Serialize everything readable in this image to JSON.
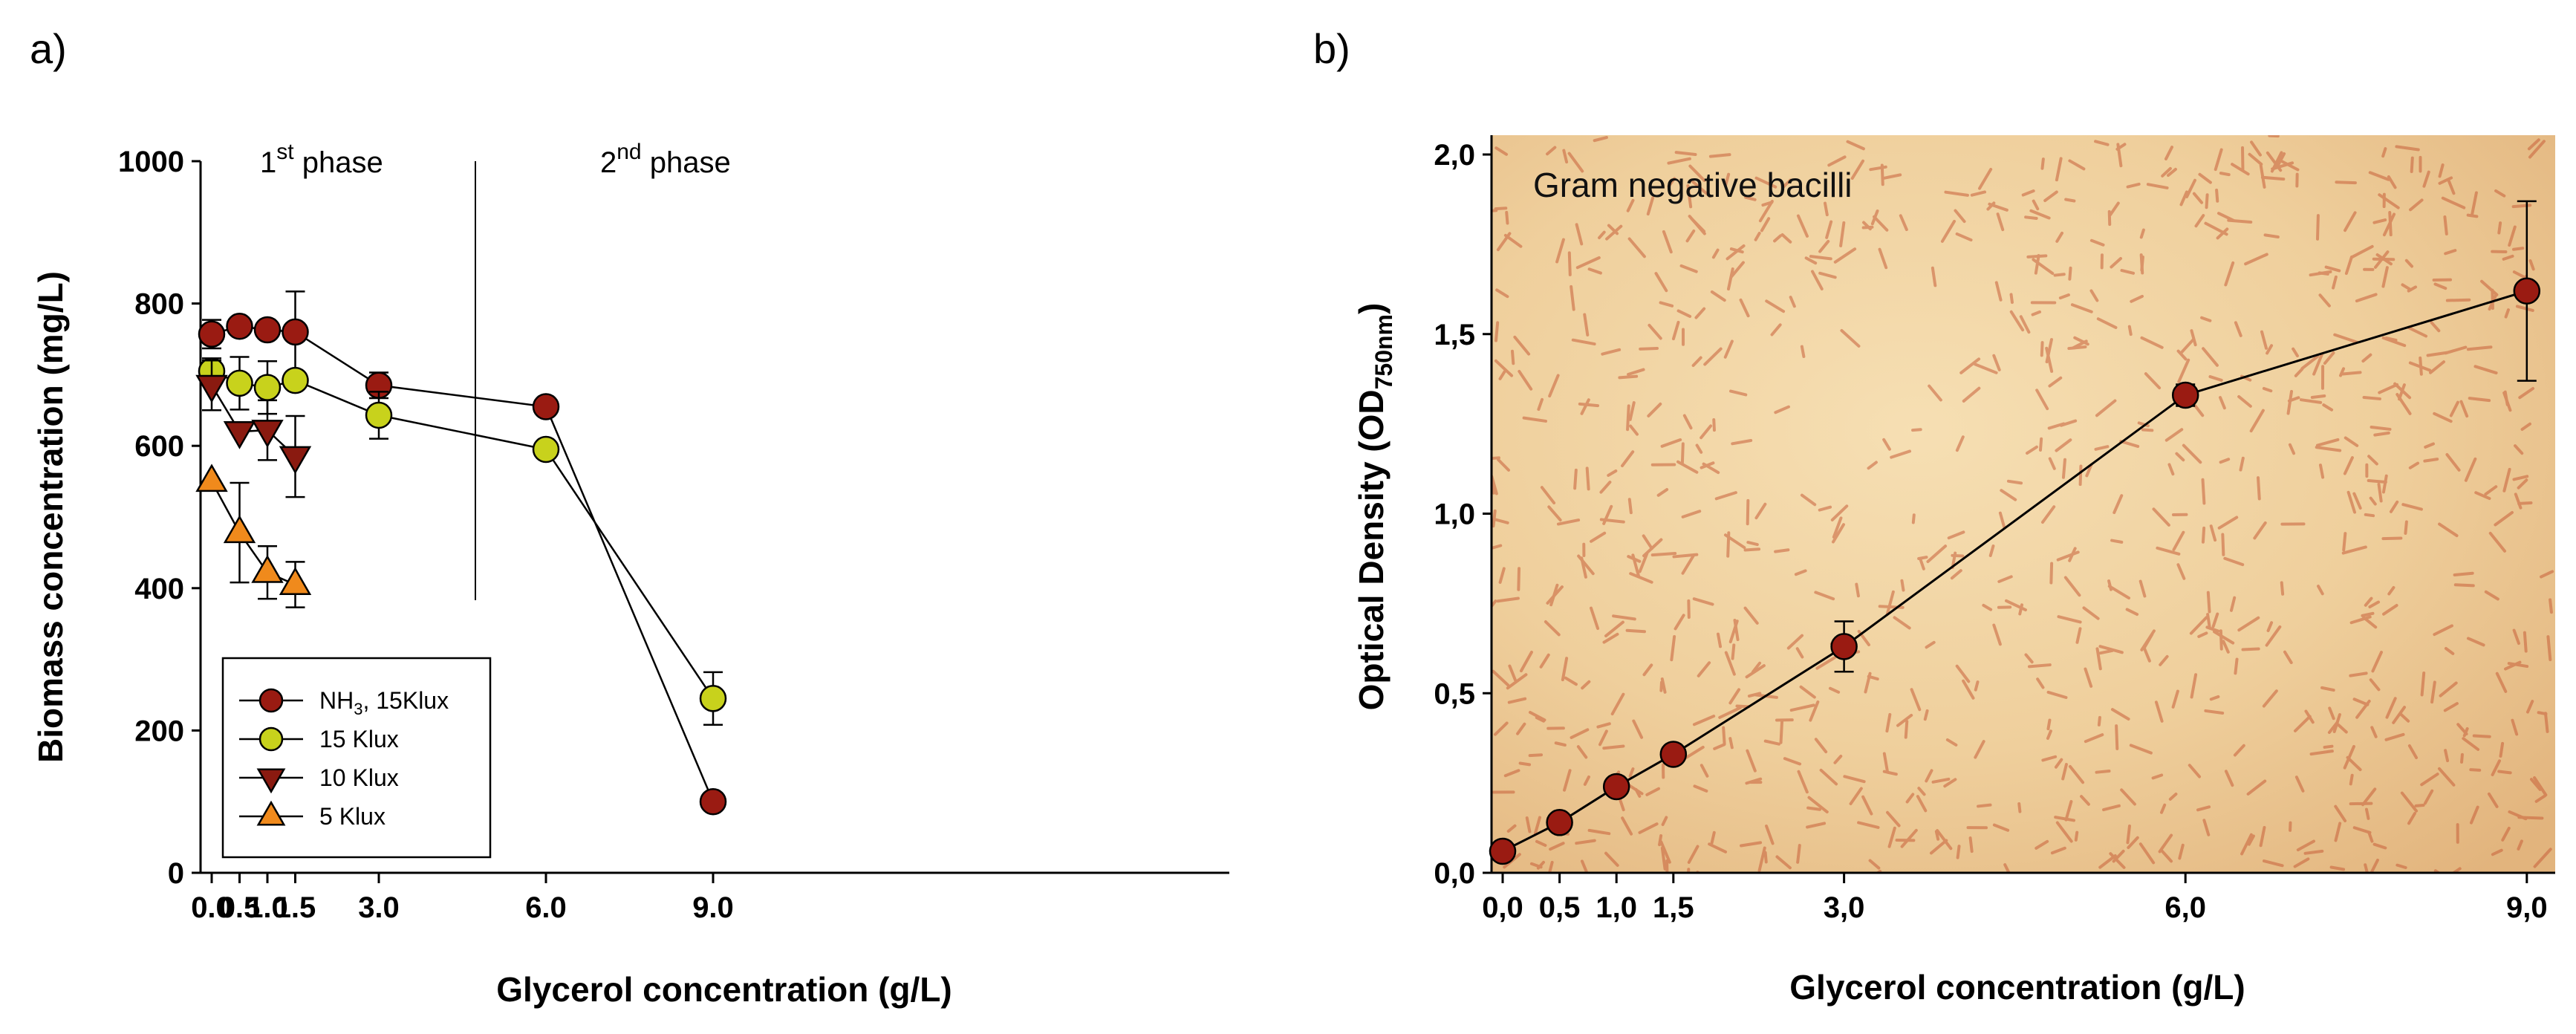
{
  "chart_data": [
    {
      "panel": "a)",
      "type": "line",
      "xlabel": "Glycerol concentration (g/L)",
      "ylabel": "Biomass concentration (mg/L)",
      "ylim": [
        0,
        1000
      ],
      "yticks": [
        "0",
        "200",
        "400",
        "600",
        "800",
        "1000"
      ],
      "xticks": [
        {
          "value": 0.0,
          "label": "0.0"
        },
        {
          "value": 0.5,
          "label": "0.5"
        },
        {
          "value": 1.0,
          "label": "1.0"
        },
        {
          "value": 1.5,
          "label": "1.5"
        },
        {
          "value": 3.0,
          "label": "3.0"
        },
        {
          "value": 6.0,
          "label": "6.0"
        },
        {
          "value": 9.0,
          "label": "9.0"
        }
      ],
      "phases": {
        "first": {
          "base": "1",
          "sup": "st",
          "rest": " phase"
        },
        "second": {
          "base": "2",
          "sup": "nd",
          "rest": " phase"
        }
      },
      "legend_position": "bottom-left",
      "series": [
        {
          "name": "NH3, 15Klux",
          "name_main": "NH",
          "name_sub": "3",
          "name_rest": ", 15Klux",
          "marker": "circle",
          "color": "#9a1b12",
          "points": [
            {
              "x": 0.0,
              "y": 757,
              "err": 20
            },
            {
              "x": 0.5,
              "y": 768,
              "err": 0
            },
            {
              "x": 1.0,
              "y": 763,
              "err": 0
            },
            {
              "x": 1.5,
              "y": 760,
              "err": 57
            },
            {
              "x": 3.0,
              "y": 685,
              "err": 18
            },
            {
              "x": 6.0,
              "y": 655,
              "err": 0
            },
            {
              "x": 9.0,
              "y": 100,
              "err": 0
            }
          ]
        },
        {
          "name": "15 Klux",
          "marker": "circle",
          "color": "#c8d21c",
          "points": [
            {
              "x": 0.0,
              "y": 705,
              "err": 18
            },
            {
              "x": 0.5,
              "y": 688,
              "err": 37
            },
            {
              "x": 1.0,
              "y": 682,
              "err": 37
            },
            {
              "x": 1.5,
              "y": 692,
              "err": 0
            },
            {
              "x": 3.0,
              "y": 643,
              "err": 33
            },
            {
              "x": 6.0,
              "y": 595,
              "err": 0
            },
            {
              "x": 9.0,
              "y": 245,
              "err": 37
            }
          ]
        },
        {
          "name": "10 Klux",
          "marker": "triangle-down",
          "color": "#8a1a10",
          "points": [
            {
              "x": 0.0,
              "y": 685,
              "err": 35
            },
            {
              "x": 0.5,
              "y": 620,
              "err": 0
            },
            {
              "x": 1.0,
              "y": 622,
              "err": 42
            },
            {
              "x": 1.5,
              "y": 585,
              "err": 57
            }
          ]
        },
        {
          "name": "5 Klux",
          "marker": "triangle-up",
          "color": "#f08a1c",
          "points": [
            {
              "x": 0.0,
              "y": 550,
              "err": 0
            },
            {
              "x": 0.5,
              "y": 478,
              "err": 70
            },
            {
              "x": 1.0,
              "y": 422,
              "err": 37
            },
            {
              "x": 1.5,
              "y": 405,
              "err": 32
            }
          ]
        }
      ]
    },
    {
      "panel": "b)",
      "type": "line",
      "xlabel": "Glycerol concentration (g/L)",
      "ylabel": "Optical Density (OD750nm)",
      "ylabel_main": "Optical Density (OD",
      "ylabel_sub": "750nm",
      "ylabel_close": ")",
      "ylim": [
        0,
        2.0
      ],
      "yticks": [
        "0,0",
        "0,5",
        "1,0",
        "1,5",
        "2,0"
      ],
      "xticks": [
        {
          "value": 0.0,
          "label": "0,0"
        },
        {
          "value": 0.5,
          "label": "0,5"
        },
        {
          "value": 1.0,
          "label": "1,0"
        },
        {
          "value": 1.5,
          "label": "1,5"
        },
        {
          "value": 3.0,
          "label": "3,0"
        },
        {
          "value": 6.0,
          "label": "6,0"
        },
        {
          "value": 9.0,
          "label": "9,0"
        }
      ],
      "background_caption": "Gram negative bacilli",
      "series": [
        {
          "name": "OD750nm",
          "marker": "circle",
          "color": "#9a1b12",
          "points": [
            {
              "x": 0.0,
              "y": 0.06,
              "err": 0
            },
            {
              "x": 0.5,
              "y": 0.14,
              "err": 0
            },
            {
              "x": 1.0,
              "y": 0.24,
              "err": 0
            },
            {
              "x": 1.5,
              "y": 0.33,
              "err": 0
            },
            {
              "x": 3.0,
              "y": 0.63,
              "err": 0.07
            },
            {
              "x": 6.0,
              "y": 1.33,
              "err": 0.03
            },
            {
              "x": 9.0,
              "y": 1.62,
              "err": 0.25
            }
          ]
        }
      ]
    }
  ]
}
